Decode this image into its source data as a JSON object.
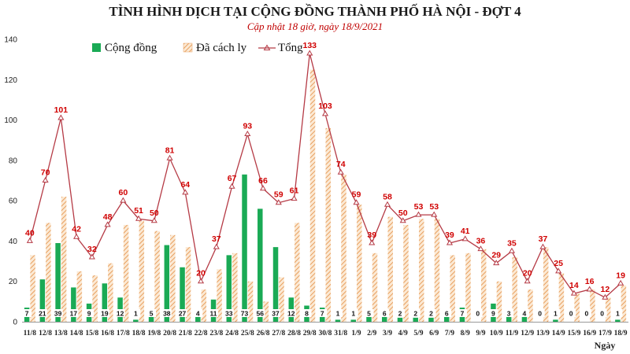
{
  "title": "TÌNH HÌNH DỊCH TẠI CỘNG ĐỒNG THÀNH PHỐ HÀ NỘI - ĐỢT 4",
  "subtitle": "Cập nhật 18 giờ, ngày 18/9/2021",
  "colors": {
    "community": "#1aaa55",
    "quarantine": "#e8a060",
    "quarantine_bg": "#fbe9d4",
    "total_line": "#b53a45",
    "total_label": "#d00000"
  },
  "legend": {
    "community": "Cộng đồng",
    "quarantine": "Đã cách ly",
    "total": "Tổng"
  },
  "chart_data": {
    "type": "bar",
    "title": "TÌNH HÌNH DỊCH TẠI CỘNG ĐỒNG THÀNH PHỐ HÀ NỘI - ĐỢT 4",
    "subtitle": "Cập nhật 18 giờ, ngày 18/9/2021",
    "xlabel": "Ngày",
    "ylabel": "",
    "ylim": [
      0,
      140
    ],
    "yticks": [
      0,
      20,
      40,
      60,
      80,
      100,
      120,
      140
    ],
    "grid": false,
    "legend_position": "top-left",
    "categories": [
      "11/8",
      "12/8",
      "13/8",
      "14/8",
      "15/8",
      "16/8",
      "17/8",
      "18/8",
      "19/8",
      "20/8",
      "21/8",
      "22/8",
      "23/8",
      "24/8",
      "25/8",
      "26/8",
      "27/8",
      "28/8",
      "29/8",
      "30/8",
      "31/8",
      "1/9",
      "2/9",
      "3/9",
      "4/9",
      "5/9",
      "6/9",
      "7/9",
      "8/9",
      "9/9",
      "10/9",
      "11/9",
      "12/9",
      "13/9",
      "14/9",
      "15/9",
      "16/9",
      "17/9",
      "18/9"
    ],
    "series": [
      {
        "name": "Cộng đồng",
        "kind": "bar",
        "values": [
          7,
          21,
          39,
          17,
          9,
          19,
          12,
          1,
          5,
          38,
          27,
          4,
          11,
          33,
          73,
          56,
          37,
          12,
          8,
          7,
          1,
          1,
          5,
          6,
          2,
          2,
          2,
          6,
          7,
          0,
          9,
          3,
          4,
          0,
          1,
          0,
          0,
          0,
          1
        ]
      },
      {
        "name": "Đã cách ly",
        "kind": "bar",
        "values": [
          33,
          49,
          62,
          25,
          23,
          29,
          48,
          50,
          45,
          43,
          37,
          16,
          26,
          34,
          20,
          10,
          22,
          49,
          125,
          96,
          73,
          58,
          34,
          52,
          48,
          51,
          51,
          33,
          34,
          36,
          20,
          32,
          16,
          37,
          24,
          14,
          16,
          12,
          18
        ]
      },
      {
        "name": "Tổng",
        "kind": "line",
        "values": [
          40,
          70,
          101,
          42,
          32,
          48,
          60,
          51,
          50,
          81,
          64,
          20,
          37,
          67,
          93,
          66,
          59,
          61,
          133,
          103,
          74,
          59,
          39,
          58,
          50,
          53,
          53,
          39,
          41,
          36,
          29,
          35,
          20,
          37,
          25,
          14,
          16,
          12,
          19
        ]
      }
    ]
  }
}
